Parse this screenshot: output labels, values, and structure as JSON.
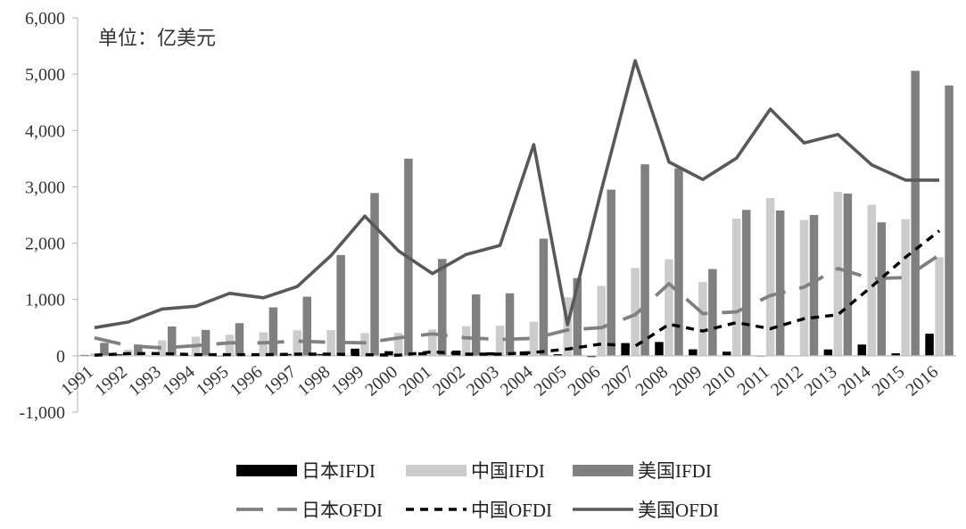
{
  "chart_data": {
    "type": "bar",
    "unit_label": "单位：亿美元",
    "categories": [
      "1991",
      "1992",
      "1993",
      "1994",
      "1995",
      "1996",
      "1997",
      "1998",
      "1999",
      "2000",
      "2001",
      "2002",
      "2003",
      "2004",
      "2005",
      "2006",
      "2007",
      "2008",
      "2009",
      "2010",
      "2011",
      "2012",
      "2013",
      "2014",
      "2015",
      "2016"
    ],
    "ylim": [
      -1000,
      6000
    ],
    "yticks": [
      6000,
      5000,
      4000,
      3000,
      2000,
      1000,
      0,
      -1000
    ],
    "ytick_labels": [
      "6,000",
      "5,000",
      "4,000",
      "3,000",
      "2,000",
      "1,000",
      "0",
      "-1,000"
    ],
    "grid": false,
    "legend_position": "bottom",
    "bar_series": [
      {
        "name": "日本IFDI",
        "color": "#000000",
        "values": [
          15,
          27,
          3,
          9,
          -6,
          2,
          32,
          32,
          127,
          82,
          62,
          92,
          63,
          78,
          28,
          -22,
          226,
          245,
          115,
          74,
          -5,
          6,
          113,
          200,
          44,
          393
        ]
      },
      {
        "name": "中国IFDI",
        "color": "#cccccc",
        "values": [
          44,
          110,
          275,
          338,
          375,
          417,
          453,
          455,
          404,
          407,
          468,
          527,
          535,
          606,
          1040,
          1241,
          1560,
          1715,
          1310,
          2437,
          2801,
          2412,
          2909,
          2680,
          2424,
          1750
        ]
      },
      {
        "name": "美国IFDI",
        "color": "#808080",
        "values": [
          230,
          200,
          520,
          460,
          580,
          860,
          1050,
          1790,
          2890,
          3500,
          1720,
          1090,
          1110,
          2080,
          1380,
          2950,
          3400,
          3330,
          1540,
          2590,
          2580,
          2500,
          2880,
          2370,
          5060,
          4800
        ]
      }
    ],
    "line_series": [
      {
        "name": "日本OFDI",
        "color": "#808080",
        "dash": "long-dash",
        "values": [
          320,
          180,
          140,
          180,
          230,
          230,
          260,
          240,
          230,
          320,
          390,
          320,
          290,
          310,
          460,
          500,
          730,
          1280,
          750,
          780,
          1070,
          1220,
          1550,
          1370,
          1390,
          1790
        ]
      },
      {
        "name": "中国OFDI",
        "color": "#000000",
        "dash": "dash",
        "values": [
          10,
          40,
          40,
          20,
          20,
          20,
          30,
          30,
          20,
          10,
          70,
          30,
          30,
          60,
          120,
          210,
          170,
          560,
          440,
          590,
          480,
          660,
          730,
          1230,
          1750,
          2220
        ]
      },
      {
        "name": "美国OFDI",
        "color": "#595959",
        "dash": "solid",
        "values": [
          500,
          600,
          830,
          880,
          1110,
          1030,
          1230,
          1780,
          2480,
          1860,
          1460,
          1800,
          1960,
          3750,
          550,
          2940,
          5240,
          3440,
          3130,
          3510,
          4380,
          3780,
          3930,
          3390,
          3120,
          3120
        ]
      }
    ]
  }
}
